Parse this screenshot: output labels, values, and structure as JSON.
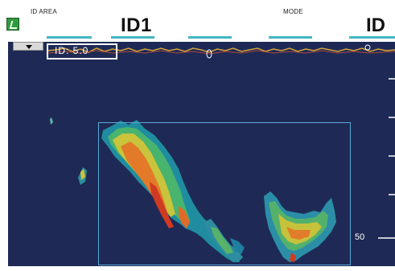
{
  "header": {
    "id_area_label": "ID AREA",
    "id_value": "ID1",
    "mode_label": "MODE",
    "mode_value": "ID"
  },
  "overlay": {
    "id_box_text": "ID:   5.0"
  },
  "scale": {
    "tick_label": "50"
  },
  "seabed_marker": "0",
  "right_seabed_marker": "0",
  "icons": {
    "app": "app-icon",
    "dropdown": "chevron-down-icon"
  },
  "colors": {
    "echo_background": "#1e2a55",
    "accent_dash": "#44b6c4",
    "selection_border": "#5aa8d8",
    "surface_line": "#d8a23a"
  }
}
